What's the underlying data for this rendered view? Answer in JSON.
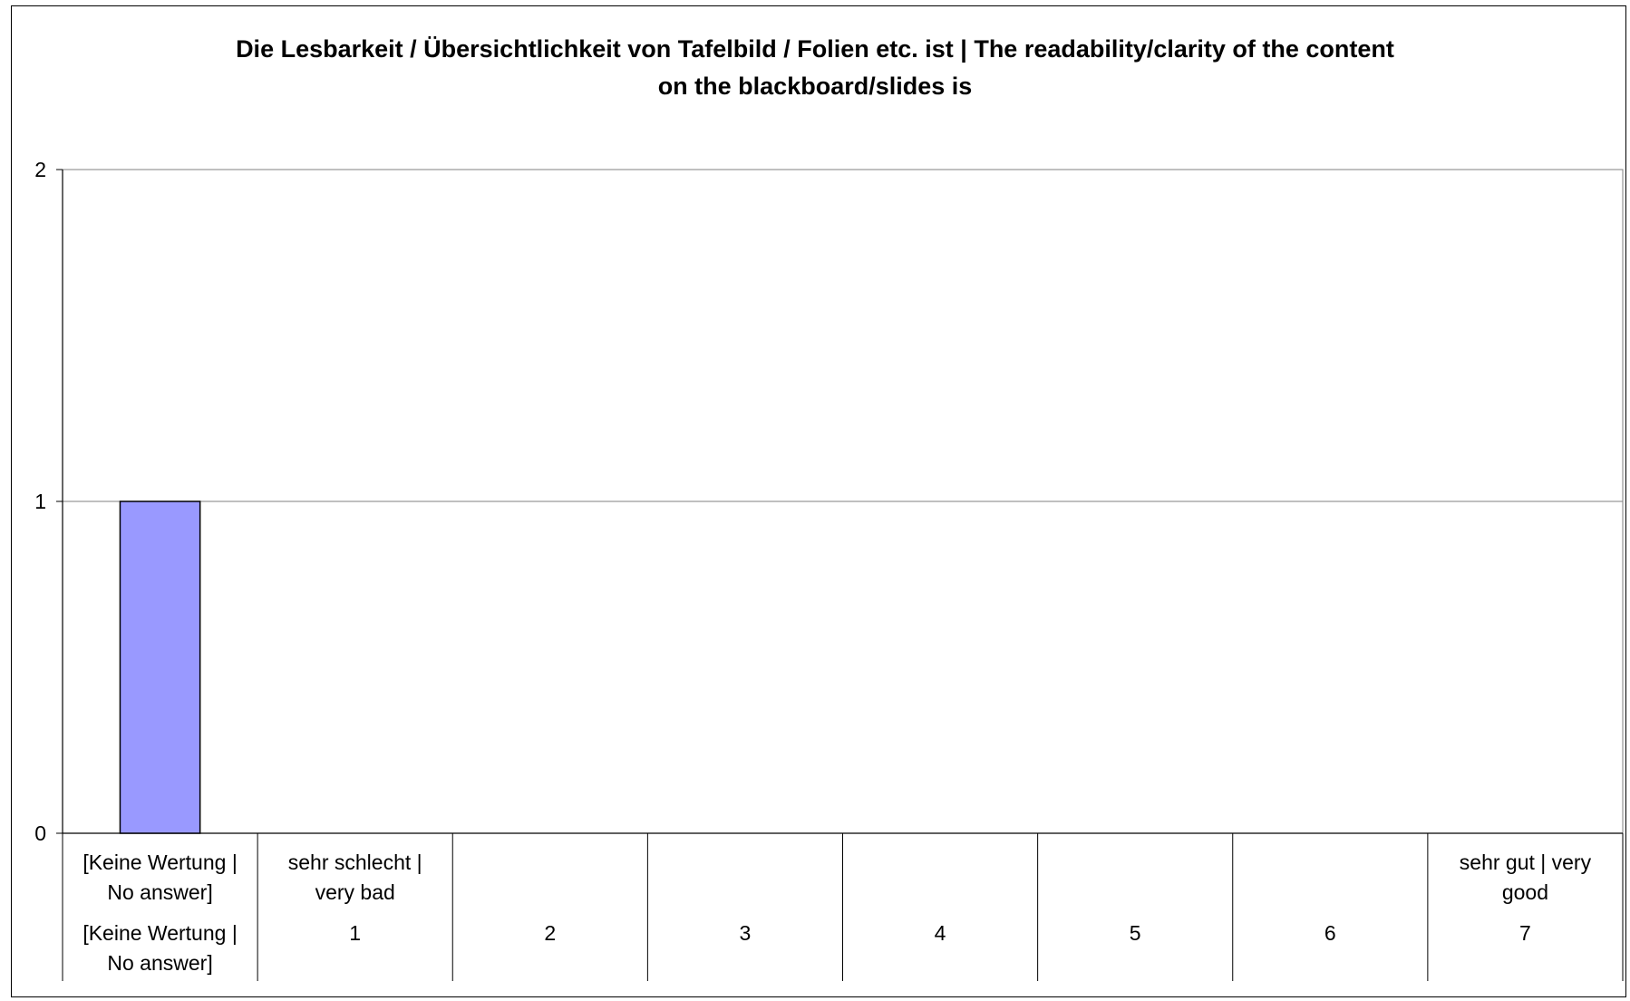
{
  "chart_data": {
    "type": "bar",
    "title_lines": [
      "Die Lesbarkeit / Übersichtlichkeit von Tafelbild / Folien etc. ist | The readability/clarity of the content",
      "on the blackboard/slides is"
    ],
    "categories": [
      {
        "label": "[Keine Wertung | No answer]",
        "label_lines": [
          "[Keine Wertung |",
          "No answer]"
        ],
        "code_lines": [
          "[Keine Wertung |",
          "No answer]"
        ]
      },
      {
        "label": "sehr schlecht | very bad",
        "label_lines": [
          "sehr schlecht |",
          "very bad"
        ],
        "code_lines": [
          "1"
        ]
      },
      {
        "label": "",
        "label_lines": [],
        "code_lines": [
          "2"
        ]
      },
      {
        "label": "",
        "label_lines": [],
        "code_lines": [
          "3"
        ]
      },
      {
        "label": "",
        "label_lines": [],
        "code_lines": [
          "4"
        ]
      },
      {
        "label": "",
        "label_lines": [],
        "code_lines": [
          "5"
        ]
      },
      {
        "label": "",
        "label_lines": [],
        "code_lines": [
          "6"
        ]
      },
      {
        "label": "sehr gut | very good",
        "label_lines": [
          "sehr gut | very",
          "good"
        ],
        "code_lines": [
          "7"
        ]
      }
    ],
    "values": [
      1,
      0,
      0,
      0,
      0,
      0,
      0,
      0
    ],
    "ylim": [
      0,
      2
    ],
    "yticks": [
      0,
      1,
      2
    ],
    "grid": true,
    "legend": "none",
    "bar_color": "#9999FF",
    "bar_edge_color": "#000000"
  }
}
